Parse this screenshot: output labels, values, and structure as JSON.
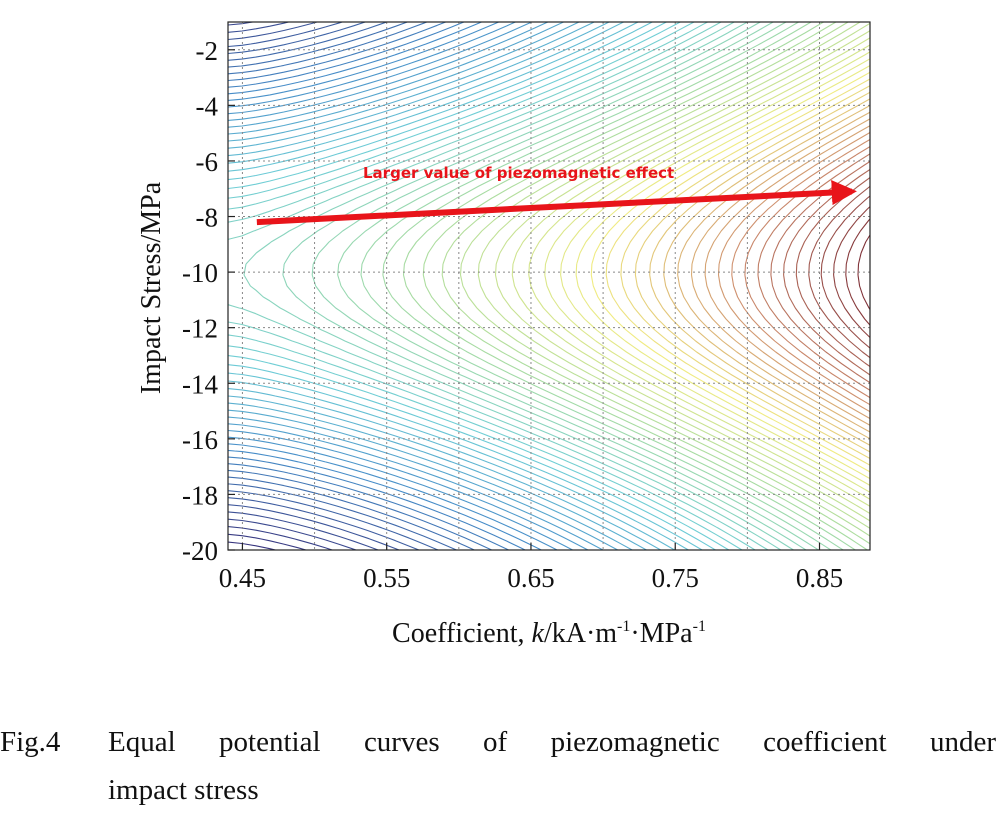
{
  "chart_data": {
    "type": "contour",
    "xlabel_prefix": "Coefficient, ",
    "xlabel_k": "k",
    "xlabel_unit": "/kA·m",
    "xlabel_sup1": "-1",
    "xlabel_mid": "·MPa",
    "xlabel_sup2": "-1",
    "ylabel": "Impact Stress/MPa",
    "xlim": [
      0.44,
      0.885
    ],
    "ylim": [
      -20,
      -1
    ],
    "x_ticks": [
      0.45,
      0.55,
      0.65,
      0.75,
      0.85
    ],
    "x_tick_labels": [
      "0.45",
      "0.55",
      "0.65",
      "0.75",
      "0.85"
    ],
    "y_ticks": [
      -2,
      -4,
      -6,
      -8,
      -10,
      -12,
      -14,
      -16,
      -18,
      -20
    ],
    "y_tick_labels": [
      "-2",
      "-4",
      "-6",
      "-8",
      "-10",
      "-12",
      "-14",
      "-16",
      "-18",
      "-20"
    ],
    "grid": true,
    "colormap": "parula (dark blue – cyan – yellow – dark red)",
    "annotation": {
      "text": "Larger value  of piezomagnetic effect",
      "color": "#e8141a",
      "arrow_start": [
        0.46,
        -8.2
      ],
      "arrow_end": [
        0.878,
        -7.1
      ]
    }
  },
  "caption": {
    "label": "Fig.4",
    "line1": "Equal potential curves of piezomagnetic coefficient under",
    "line2": "impact stress"
  },
  "colors": {
    "arrow": "#e8141a",
    "grid": "#888888"
  }
}
